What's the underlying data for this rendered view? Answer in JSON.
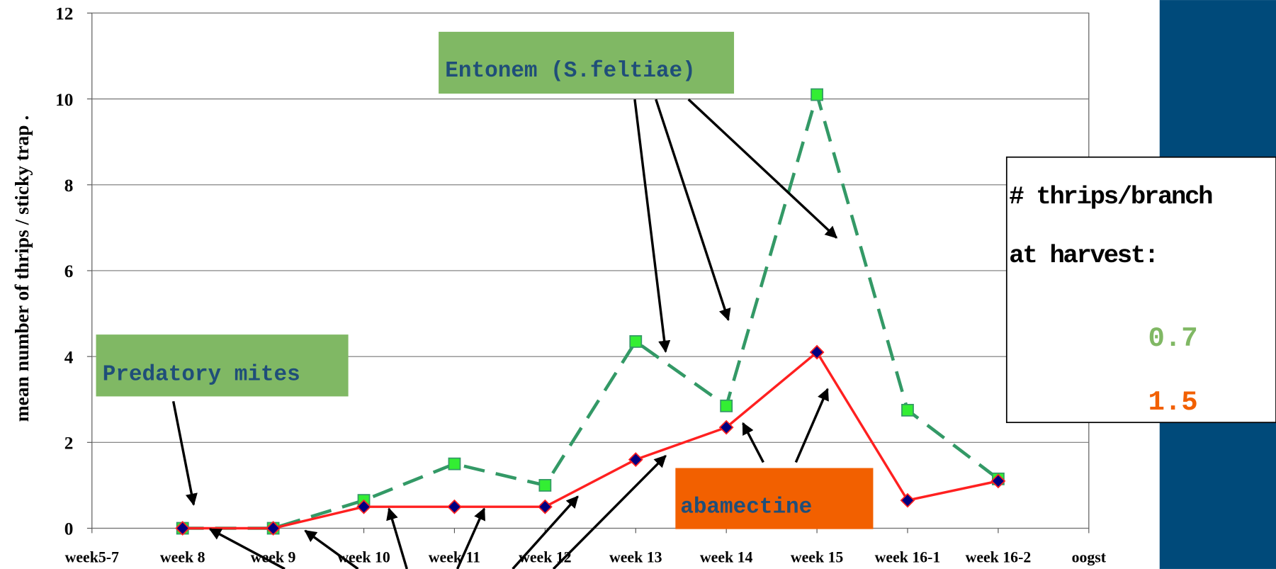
{
  "chart_data": {
    "type": "line",
    "y_label": "mean number of thrips / sticky trap .",
    "categories": [
      "week5-7",
      "week 8",
      "week 9",
      "week 10",
      "week 11",
      "week 12",
      "week 13",
      "week 14",
      "week 15",
      "week 16-1",
      "week 16-2",
      "oogst"
    ],
    "series": [
      {
        "color": "#339966",
        "marker_color": "#33ee33",
        "dashed": true,
        "values": [
          null,
          0,
          0,
          0.65,
          1.5,
          1.0,
          4.35,
          2.85,
          10.1,
          2.75,
          1.15,
          null
        ]
      },
      {
        "color": "#ff2020",
        "marker_color": "#000080",
        "dashed": false,
        "values": [
          null,
          0,
          0,
          0.5,
          0.5,
          0.5,
          1.6,
          2.35,
          4.1,
          0.65,
          1.1,
          null
        ]
      }
    ],
    "ylim": [
      0,
      12
    ],
    "yticks": [
      0,
      2,
      4,
      6,
      8,
      10,
      12
    ],
    "grid": true,
    "annotations": {
      "entonem": "Entonem (S.feltiae)",
      "predatory": "Predatory mites",
      "abamectine": "abamectine",
      "harvest_title_1": "# thrips/branch",
      "harvest_title_2": "at harvest:",
      "harvest_green": "0.7",
      "harvest_orange": "1.5"
    }
  }
}
